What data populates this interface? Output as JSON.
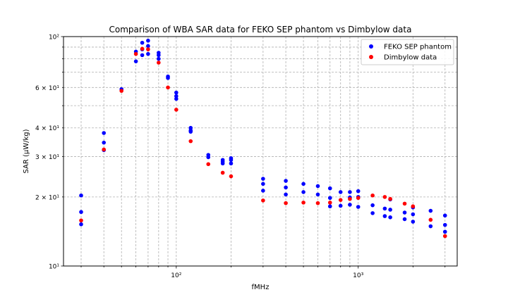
{
  "chart_data": {
    "type": "scatter",
    "title": "Comparison of WBA SAR data for FEKO SEP phantom vs Dimbylow data",
    "xlabel": "fMHz",
    "ylabel": "SAR (μW/kg)",
    "xscale": "log",
    "yscale": "log",
    "xlim": [
      24,
      3500
    ],
    "ylim": [
      10,
      100
    ],
    "grid": true,
    "legend_position": "top-right",
    "x_tick_labels": [
      {
        "value": 100,
        "label": "10²"
      },
      {
        "value": 1000,
        "label": "10³"
      }
    ],
    "y_tick_labels": [
      {
        "value": 10,
        "label": "10¹"
      },
      {
        "value": 20,
        "label": "2 × 10¹"
      },
      {
        "value": 30,
        "label": "3 × 10¹"
      },
      {
        "value": 40,
        "label": "4 × 10¹"
      },
      {
        "value": 60,
        "label": "6 × 10¹"
      },
      {
        "value": 100,
        "label": "10²"
      }
    ],
    "series": [
      {
        "name": "FEKO SEP phantom",
        "color": "#0000ff",
        "points": [
          [
            30,
            20.3
          ],
          [
            30,
            17.2
          ],
          [
            30,
            15.2
          ],
          [
            40,
            38.0
          ],
          [
            40,
            34.5
          ],
          [
            40,
            32.0
          ],
          [
            50,
            59.0
          ],
          [
            60,
            86.0
          ],
          [
            60,
            78.0
          ],
          [
            65,
            94.0
          ],
          [
            65,
            88.0
          ],
          [
            65,
            83.0
          ],
          [
            70,
            96.0
          ],
          [
            70,
            91.0
          ],
          [
            70,
            84.0
          ],
          [
            80,
            85.0
          ],
          [
            80,
            83.0
          ],
          [
            80,
            80.0
          ],
          [
            90,
            67.0
          ],
          [
            90,
            66.0
          ],
          [
            100,
            57.0
          ],
          [
            100,
            55.0
          ],
          [
            100,
            53.5
          ],
          [
            120,
            40.0
          ],
          [
            120,
            39.0
          ],
          [
            120,
            38.5
          ],
          [
            150,
            30.5
          ],
          [
            150,
            29.8
          ],
          [
            180,
            29.0
          ],
          [
            180,
            28.5
          ],
          [
            180,
            28.0
          ],
          [
            200,
            29.5
          ],
          [
            200,
            29.0
          ],
          [
            200,
            28.0
          ],
          [
            300,
            24.0
          ],
          [
            300,
            22.8
          ],
          [
            300,
            21.3
          ],
          [
            400,
            23.5
          ],
          [
            400,
            22.0
          ],
          [
            400,
            20.5
          ],
          [
            500,
            22.8
          ],
          [
            500,
            21.0
          ],
          [
            600,
            22.3
          ],
          [
            600,
            20.5
          ],
          [
            700,
            21.8
          ],
          [
            700,
            19.8
          ],
          [
            700,
            18.2
          ],
          [
            800,
            21.0
          ],
          [
            800,
            18.3
          ],
          [
            900,
            21.0
          ],
          [
            900,
            19.9
          ],
          [
            900,
            18.5
          ],
          [
            1000,
            21.2
          ],
          [
            1000,
            20.0
          ],
          [
            1000,
            18.1
          ],
          [
            1200,
            18.4
          ],
          [
            1200,
            17.0
          ],
          [
            1400,
            17.8
          ],
          [
            1400,
            16.5
          ],
          [
            1500,
            19.5
          ],
          [
            1500,
            17.6
          ],
          [
            1500,
            16.3
          ],
          [
            1800,
            17.1
          ],
          [
            1800,
            16.0
          ],
          [
            2000,
            18.0
          ],
          [
            2000,
            16.8
          ],
          [
            2000,
            15.6
          ],
          [
            2500,
            17.4
          ],
          [
            2500,
            14.9
          ],
          [
            3000,
            16.6
          ],
          [
            3000,
            15.1
          ],
          [
            3000,
            14.1
          ]
        ]
      },
      {
        "name": "Dimbylow data",
        "color": "#ff0000",
        "points": [
          [
            30,
            15.8
          ],
          [
            40,
            32.2
          ],
          [
            50,
            58.0
          ],
          [
            60,
            84.0
          ],
          [
            65,
            88.5
          ],
          [
            70,
            88.0
          ],
          [
            80,
            77.0
          ],
          [
            90,
            60.0
          ],
          [
            100,
            48.0
          ],
          [
            120,
            35.0
          ],
          [
            150,
            27.8
          ],
          [
            180,
            25.5
          ],
          [
            200,
            24.6
          ],
          [
            300,
            19.3
          ],
          [
            400,
            18.8
          ],
          [
            500,
            18.9
          ],
          [
            600,
            18.8
          ],
          [
            700,
            18.9
          ],
          [
            800,
            19.4
          ],
          [
            900,
            19.6
          ],
          [
            1000,
            19.8
          ],
          [
            1200,
            20.3
          ],
          [
            1400,
            20.0
          ],
          [
            1500,
            19.6
          ],
          [
            1800,
            18.7
          ],
          [
            2000,
            18.2
          ],
          [
            2500,
            15.9
          ],
          [
            3000,
            13.5
          ]
        ]
      }
    ]
  }
}
